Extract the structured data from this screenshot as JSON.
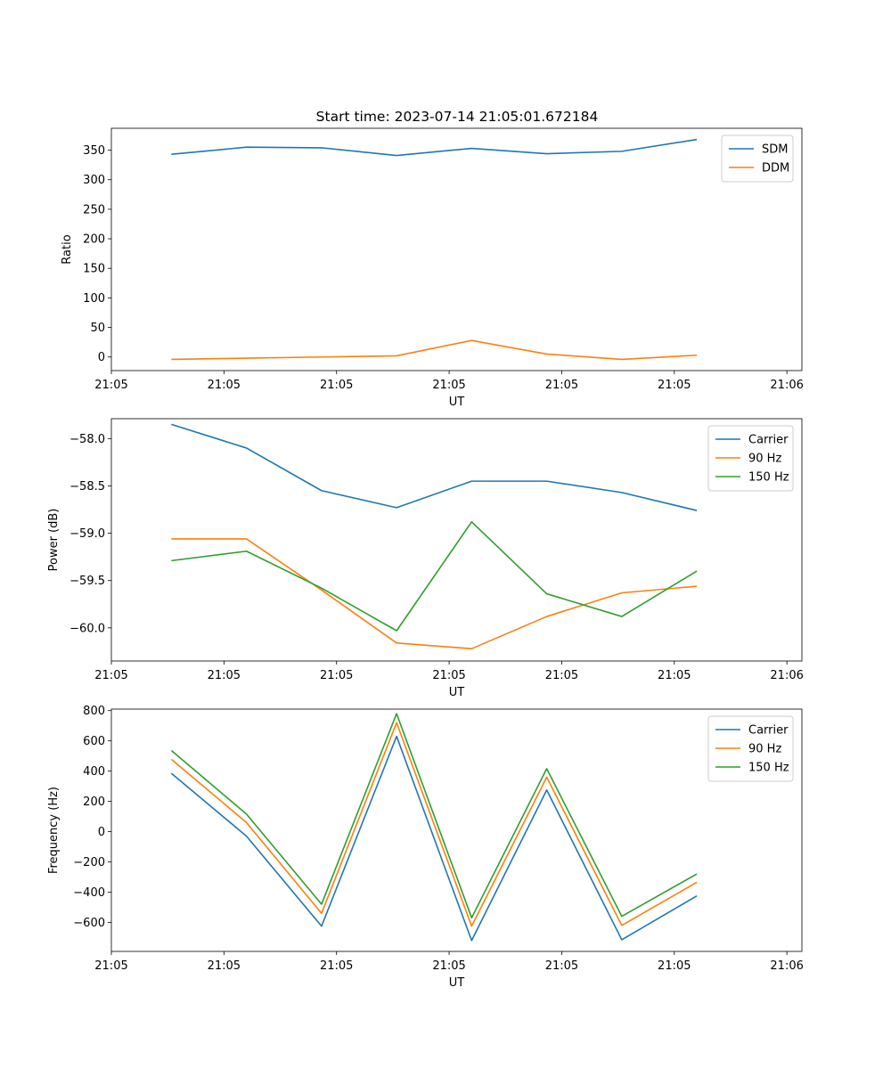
{
  "figure_title": "Start time: 2023-07-14 21:05:01.672184",
  "chart_data": [
    {
      "type": "line",
      "title": "Start time: 2023-07-14 21:05:01.672184",
      "xlabel": "UT",
      "ylabel": "Ratio",
      "x": [
        1,
        2,
        3,
        4,
        5,
        6,
        7,
        8
      ],
      "xlim": [
        0.2,
        9.4
      ],
      "x_ticks": [
        0.2,
        1.7,
        3.2,
        4.7,
        6.2,
        7.7,
        9.2
      ],
      "x_tick_labels": [
        "21:05",
        "21:05",
        "21:05",
        "21:05",
        "21:05",
        "21:05",
        "21:06"
      ],
      "ylim": [
        -23,
        387
      ],
      "y_ticks": [
        0,
        50,
        100,
        150,
        200,
        250,
        300,
        350
      ],
      "y_tick_labels": [
        "0",
        "50",
        "100",
        "150",
        "200",
        "250",
        "300",
        "350"
      ],
      "legend_position": "top-right",
      "series": [
        {
          "name": "SDM",
          "color": "#1f77b4",
          "values": [
            343,
            355,
            354,
            341,
            353,
            344,
            348,
            368
          ]
        },
        {
          "name": "DDM",
          "color": "#ff7f0e",
          "values": [
            -4,
            -2,
            0,
            2,
            28,
            5,
            -4,
            3
          ]
        }
      ]
    },
    {
      "type": "line",
      "xlabel": "UT",
      "ylabel": "Power (dB)",
      "x": [
        1,
        2,
        3,
        4,
        5,
        6,
        7,
        8
      ],
      "xlim": [
        0.2,
        9.4
      ],
      "x_ticks": [
        0.2,
        1.7,
        3.2,
        4.7,
        6.2,
        7.7,
        9.2
      ],
      "x_tick_labels": [
        "21:05",
        "21:05",
        "21:05",
        "21:05",
        "21:05",
        "21:05",
        "21:06"
      ],
      "ylim": [
        -60.35,
        -57.79
      ],
      "y_ticks": [
        -60.0,
        -59.5,
        -59.0,
        -58.5,
        -58.0
      ],
      "y_tick_labels": [
        "−60.0",
        "−59.5",
        "−59.0",
        "−58.5",
        "−58.0"
      ],
      "legend_position": "top-right",
      "series": [
        {
          "name": "Carrier",
          "color": "#1f77b4",
          "values": [
            -57.85,
            -58.1,
            -58.55,
            -58.73,
            -58.45,
            -58.45,
            -58.57,
            -58.76
          ]
        },
        {
          "name": "90 Hz",
          "color": "#ff7f0e",
          "values": [
            -59.06,
            -59.06,
            -59.6,
            -60.16,
            -60.22,
            -59.88,
            -59.63,
            -59.56
          ]
        },
        {
          "name": "150 Hz",
          "color": "#2ca02c",
          "values": [
            -59.29,
            -59.19,
            -59.58,
            -60.03,
            -58.88,
            -59.64,
            -59.88,
            -59.4
          ]
        }
      ]
    },
    {
      "type": "line",
      "xlabel": "UT",
      "ylabel": "Frequency (Hz)",
      "x": [
        1,
        2,
        3,
        4,
        5,
        6,
        7,
        8
      ],
      "xlim": [
        0.2,
        9.4
      ],
      "x_ticks": [
        0.2,
        1.7,
        3.2,
        4.7,
        6.2,
        7.7,
        9.2
      ],
      "x_tick_labels": [
        "21:05",
        "21:05",
        "21:05",
        "21:05",
        "21:05",
        "21:05",
        "21:06"
      ],
      "ylim": [
        -792,
        810
      ],
      "y_ticks": [
        -600,
        -400,
        -200,
        0,
        200,
        400,
        600,
        800
      ],
      "y_tick_labels": [
        "−600",
        "−400",
        "−200",
        "0",
        "200",
        "400",
        "600",
        "800"
      ],
      "legend_position": "top-right",
      "series": [
        {
          "name": "Carrier",
          "color": "#1f77b4",
          "values": [
            385,
            -30,
            -625,
            630,
            -720,
            275,
            -715,
            -425
          ]
        },
        {
          "name": "90 Hz",
          "color": "#ff7f0e",
          "values": [
            478,
            60,
            -540,
            720,
            -625,
            360,
            -620,
            -335
          ]
        },
        {
          "name": "150 Hz",
          "color": "#2ca02c",
          "values": [
            536,
            116,
            -480,
            780,
            -570,
            416,
            -560,
            -280
          ]
        }
      ]
    }
  ]
}
